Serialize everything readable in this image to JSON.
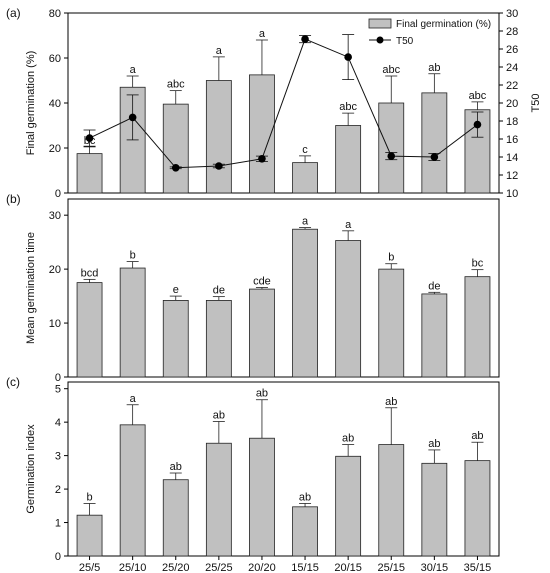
{
  "chart_data": [
    {
      "panel_label": "(a)",
      "type": "bar",
      "categories": [
        "25/5",
        "25/10",
        "25/20",
        "25/25",
        "20/20",
        "15/15",
        "20/15",
        "25/15",
        "30/15",
        "35/15"
      ],
      "ylabel": "Final germination (%)",
      "ylim": [
        0,
        80
      ],
      "y_ticks": [
        0,
        20,
        40,
        60,
        80
      ],
      "y2label": "T50",
      "y2lim": [
        10,
        30
      ],
      "y2_ticks": [
        10,
        12,
        14,
        16,
        18,
        20,
        22,
        24,
        26,
        28,
        30
      ],
      "legend_position": "top-right",
      "series": [
        {
          "name": "Final germination (%)",
          "type": "bar",
          "axis": "left",
          "values": [
            17.5,
            47,
            39.5,
            50,
            52.5,
            13.5,
            30,
            40,
            44.5,
            37
          ],
          "errors": [
            3,
            5,
            6,
            10.5,
            15.5,
            3,
            5.5,
            12,
            8.5,
            3.5
          ],
          "letters": [
            "bc",
            "a",
            "abc",
            "a",
            "a",
            "c",
            "abc",
            "abc",
            "ab",
            "abc"
          ]
        },
        {
          "name": "T50",
          "type": "line",
          "axis": "right",
          "values": [
            16.1,
            18.4,
            12.8,
            13.0,
            13.8,
            27.1,
            25.1,
            14.1,
            14.0,
            17.6
          ],
          "errors": [
            0.9,
            2.5,
            0.1,
            0.2,
            0.3,
            0.4,
            2.5,
            0.4,
            0.4,
            1.4
          ]
        }
      ]
    },
    {
      "panel_label": "(b)",
      "type": "bar",
      "categories": [
        "25/5",
        "25/10",
        "25/20",
        "25/25",
        "20/20",
        "15/15",
        "20/15",
        "25/15",
        "30/15",
        "35/15"
      ],
      "ylabel": "Mean germination time",
      "ylim": [
        0,
        33
      ],
      "y_ticks": [
        0,
        10,
        20,
        30
      ],
      "series": [
        {
          "values": [
            17.5,
            20.2,
            14.2,
            14.2,
            16.3,
            27.4,
            25.3,
            20.0,
            15.4,
            18.6
          ],
          "errors": [
            0.6,
            1.2,
            0.8,
            0.7,
            0.3,
            0.3,
            1.8,
            1.0,
            0.3,
            1.3
          ],
          "letters": [
            "bcd",
            "b",
            "e",
            "de",
            "cde",
            "a",
            "a",
            "b",
            "de",
            "bc"
          ]
        }
      ]
    },
    {
      "panel_label": "(c)",
      "type": "bar",
      "categories": [
        "25/5",
        "25/10",
        "25/20",
        "25/25",
        "20/20",
        "15/15",
        "20/15",
        "25/15",
        "30/15",
        "35/15"
      ],
      "ylabel": "Germination index",
      "ylim": [
        0,
        5.2
      ],
      "y_ticks": [
        0,
        1,
        2,
        3,
        4,
        5
      ],
      "series": [
        {
          "values": [
            1.22,
            3.92,
            2.28,
            3.37,
            3.52,
            1.47,
            2.98,
            3.33,
            2.77,
            2.85
          ],
          "errors": [
            0.35,
            0.6,
            0.2,
            0.65,
            1.15,
            0.1,
            0.35,
            1.1,
            0.4,
            0.55
          ],
          "letters": [
            "b",
            "a",
            "ab",
            "ab",
            "ab",
            "ab",
            "ab",
            "ab",
            "ab",
            "ab"
          ]
        }
      ]
    }
  ],
  "colors": {
    "bar_fill": "#c0c0c0",
    "bar_stroke": "#222222",
    "line": "#111111",
    "marker": "#000000"
  }
}
